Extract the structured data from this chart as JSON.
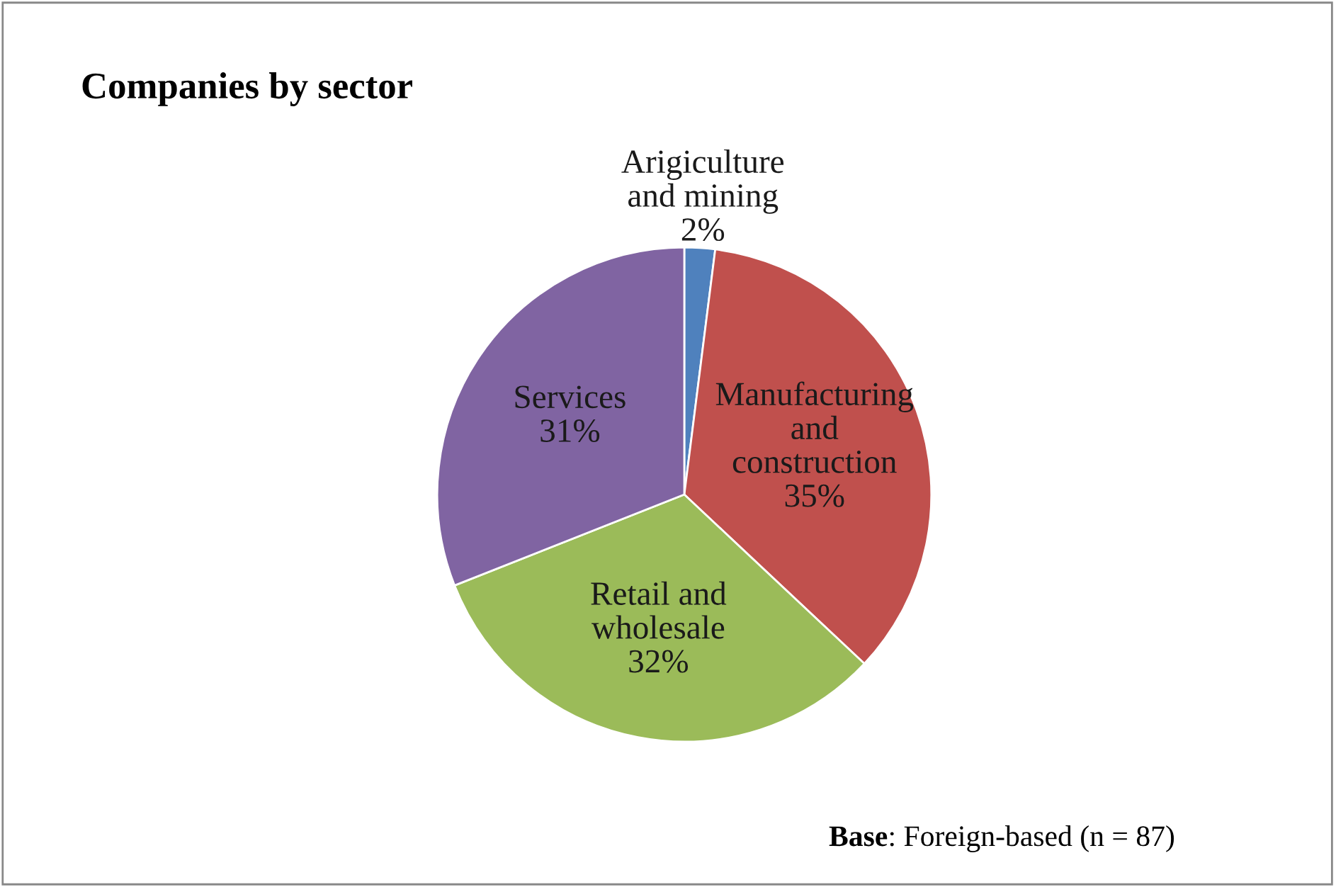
{
  "chart_data": {
    "type": "pie",
    "title": "Companies by sector",
    "categories": [
      "Arigiculture\nand mining",
      "Manufacturing\nand\nconstruction",
      "Retail and\nwholesale",
      "Services"
    ],
    "values": [
      2,
      35,
      32,
      31
    ],
    "colors": [
      "#4f81bd",
      "#c0504d",
      "#9bbb59",
      "#8064a2"
    ],
    "value_labels": [
      "2%",
      "35%",
      "32%",
      "31%"
    ],
    "annotations": [
      "Base: Foreign-based (n = 87)"
    ],
    "legend": false
  }
}
